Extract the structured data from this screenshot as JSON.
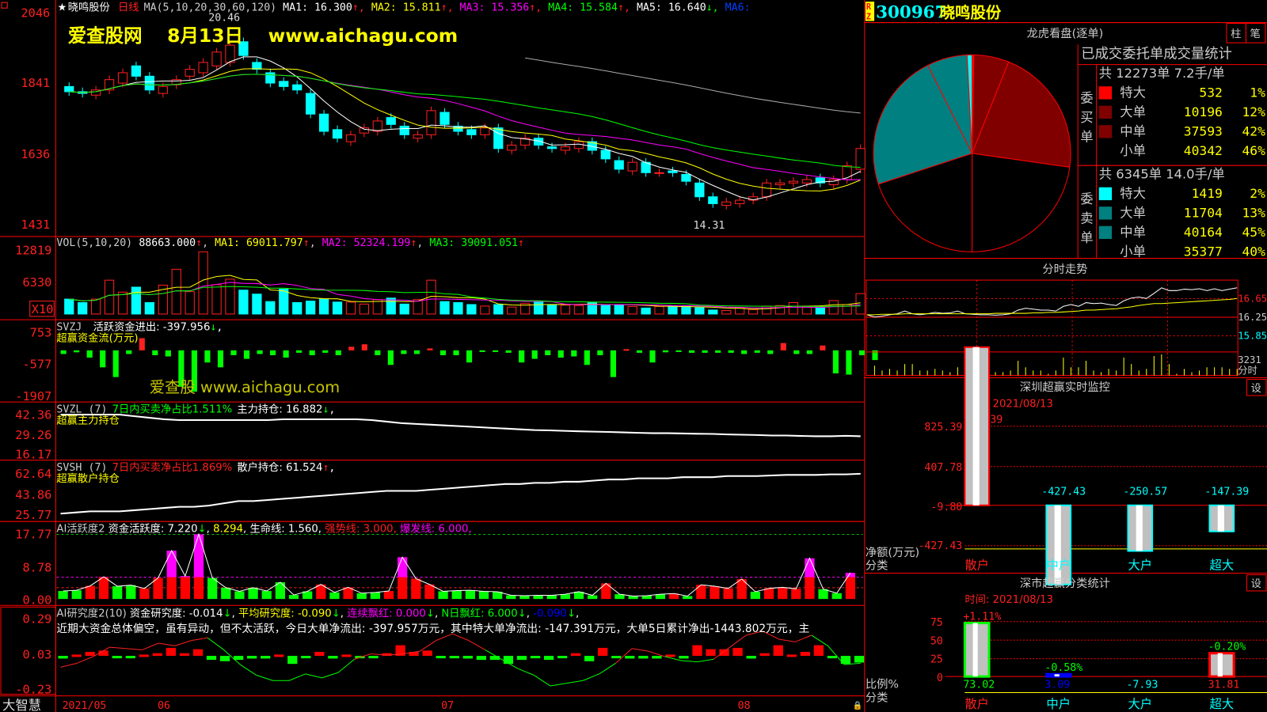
{
  "header": {
    "stock_name": "晓鸣股份",
    "period": "日线",
    "ma_label": "MA(5,10,20,30,60,120)",
    "ma": [
      {
        "label": "MA1: 16.300",
        "color": "#ffffff"
      },
      {
        "label": "MA2: 15.811",
        "color": "#ffff00"
      },
      {
        "label": "MA3: 15.356",
        "color": "#ff00ff"
      },
      {
        "label": "MA4: 15.584",
        "color": "#00ff00"
      },
      {
        "label": "MA5: 16.640",
        "color": "#ffffff"
      },
      {
        "label": "MA6:",
        "color": "#0040ff"
      }
    ],
    "watermark1": "爱查股网　 8月13日　 www.aichagu.com",
    "watermark2": "爱查股 www.aichagu.com",
    "high_mark": "20.46",
    "low_mark": "14.31"
  },
  "colors": {
    "up": "#ff2020",
    "down": "#00ffff",
    "grid": "#ff0000",
    "axis_text": "#ff2020"
  },
  "price_axis": [
    "2046",
    "1841",
    "1636",
    "1431"
  ],
  "price_axis_values": [
    20.46,
    18.41,
    16.36,
    14.31
  ],
  "candles": {
    "open": [
      18.3,
      18.15,
      18.05,
      18.2,
      18.4,
      18.9,
      18.6,
      18.1,
      18.35,
      18.6,
      18.7,
      18.9,
      19.0,
      19.6,
      19.0,
      18.7,
      18.45,
      18.35,
      18.1,
      17.5,
      17.05,
      16.7,
      16.95,
      17.0,
      17.4,
      17.15,
      16.8,
      16.9,
      17.55,
      17.15,
      17.05,
      16.9,
      17.1,
      16.45,
      16.6,
      16.8,
      16.55,
      16.45,
      16.5,
      16.7,
      16.45,
      16.15,
      15.85,
      16.1,
      15.8,
      15.85,
      15.75,
      15.5,
      15.1,
      14.85,
      14.9,
      15.0,
      15.1,
      15.45,
      15.5,
      15.5,
      15.65,
      15.45,
      15.6,
      15.9
    ],
    "close": [
      18.15,
      18.1,
      18.2,
      18.5,
      18.7,
      18.6,
      18.2,
      18.3,
      18.5,
      18.8,
      19.0,
      19.3,
      19.5,
      19.2,
      18.8,
      18.4,
      18.3,
      18.2,
      17.5,
      17.0,
      16.8,
      16.9,
      17.1,
      17.3,
      17.2,
      16.9,
      16.9,
      17.6,
      17.2,
      17.0,
      16.9,
      17.1,
      16.5,
      16.6,
      16.8,
      16.6,
      16.5,
      16.55,
      16.7,
      16.45,
      16.2,
      15.9,
      16.1,
      15.8,
      15.8,
      15.8,
      15.55,
      15.1,
      14.9,
      14.95,
      15.0,
      15.1,
      15.5,
      15.5,
      15.55,
      15.6,
      15.5,
      15.6,
      16.0,
      16.5
    ]
  },
  "volume": {
    "label": "VOL(5,10,20)",
    "value": "88663.000",
    "ma": [
      {
        "label": "MA1: 69011.797",
        "color": "#ffff00"
      },
      {
        "label": "MA2: 52324.199",
        "color": "#ff00ff"
      },
      {
        "label": "MA3: 39091.051",
        "color": "#00ff00"
      }
    ],
    "axis": [
      "12819",
      "6330"
    ],
    "axis_values": [
      12819,
      6330
    ],
    "unit_badge": "X10",
    "values": [
      3000,
      2300,
      3000,
      6800,
      4400,
      5400,
      2300,
      5800,
      9000,
      4500,
      12500,
      5900,
      7000,
      4800,
      4000,
      2500,
      5000,
      2300,
      2600,
      3000,
      2400,
      2400,
      2000,
      2900,
      3200,
      2000,
      2900,
      6800,
      2500,
      2300,
      1900,
      1600,
      1900,
      1400,
      2100,
      2400,
      1800,
      1800,
      1700,
      2300,
      1800,
      1900,
      1500,
      1200,
      1500,
      1600,
      1600,
      1300,
      800,
      700,
      1300,
      900,
      1600,
      1700,
      2300,
      1400,
      1200,
      2700,
      1900,
      4100
    ]
  },
  "svzj": {
    "label": "SVZJ",
    "title": "活跃资金进出: -397.956",
    "sub": "超赢资金流(万元)",
    "axis": [
      "753",
      "-577",
      "-1907"
    ],
    "axis_values": [
      753,
      -577,
      -1907
    ],
    "values": [
      -150,
      -80,
      -300,
      -700,
      -1100,
      -150,
      500,
      -200,
      -250,
      -1500,
      -1700,
      -500,
      -700,
      -200,
      -350,
      -150,
      -200,
      -300,
      -100,
      -200,
      -100,
      -200,
      150,
      250,
      -200,
      -600,
      -150,
      -150,
      80,
      -200,
      -200,
      -500,
      -50,
      -60,
      -100,
      -500,
      -350,
      -200,
      -300,
      -250,
      -600,
      -200,
      -1100,
      50,
      -100,
      -500,
      -80,
      -50,
      -100,
      -100,
      -100,
      -100,
      -150,
      -100,
      -150,
      300,
      -150,
      -150,
      200,
      -950,
      -1000,
      -200,
      -400
    ]
  },
  "svzl": {
    "label": "SVZL",
    "param": "(7)",
    "ratio": "7日内买卖净占比1.511%",
    "hold": "主力持仓: 16.882",
    "sub": "超赢主力持仓",
    "axis": [
      "42.36",
      "29.26",
      "16.17"
    ],
    "axis_values": [
      42.36,
      29.26,
      16.17
    ],
    "values": [
      42,
      42,
      42,
      42,
      42,
      41,
      40,
      39,
      38.5,
      38.5,
      38.5,
      38.5,
      38.5,
      38.5,
      38.5,
      39,
      39,
      39,
      39,
      39,
      39,
      38.5,
      37.5,
      36.5,
      36,
      35.5,
      35,
      34.5,
      34,
      33.5,
      33,
      32.5,
      32,
      31.8,
      31.5,
      31.2,
      31,
      30.8,
      30.5,
      30.2,
      30,
      30,
      29.8,
      29.6,
      29.5,
      29.2,
      29,
      28.8,
      28.5,
      28.5,
      28.2,
      28,
      28,
      28.3,
      28
    ]
  },
  "svsh": {
    "label": "SVSH",
    "param": "(7)",
    "ratio": "7日内买卖净占比1.869%",
    "hold": "散户持仓: 61.524",
    "sub": "超赢散户持仓",
    "axis": [
      "62.64",
      "43.86",
      "25.77"
    ],
    "axis_values": [
      62.64,
      43.86,
      25.77
    ],
    "values": [
      27,
      28,
      29,
      29,
      29,
      30,
      31,
      32,
      33,
      33,
      34,
      36,
      38,
      38,
      39,
      40,
      41,
      42,
      43,
      44,
      45,
      46,
      47,
      47,
      47,
      48,
      49,
      50,
      51,
      52,
      53,
      53,
      54,
      54,
      55,
      55,
      56,
      57,
      57,
      58,
      58,
      58,
      59,
      59,
      59,
      60,
      60,
      60,
      60.5,
      61,
      61,
      61,
      61.5,
      61.5,
      62
    ]
  },
  "ai_active": {
    "label": "AI活跃度2",
    "fund": "资金活跃度: 7.220",
    "v2": "8.294",
    "life": "生命线: 1.560",
    "strong": "强势线: 3.000",
    "burst": "爆发线: 6.000",
    "axis": [
      "17.77",
      "8.78",
      "0.00"
    ],
    "axis_values": [
      17.77,
      8.78,
      0
    ],
    "values": [
      2.2,
      2.4,
      3.6,
      6.1,
      3.5,
      3.8,
      2.9,
      5.8,
      13.3,
      6.3,
      17.8,
      5.8,
      3.1,
      2.1,
      3.1,
      2.2,
      4.6,
      1.1,
      2.1,
      4.0,
      1.8,
      3.2,
      1.6,
      1.8,
      2.2,
      11.5,
      5.6,
      4.0,
      2.1,
      2.3,
      2.4,
      2.1,
      2.0,
      1.0,
      0.9,
      1.0,
      1.0,
      1.3,
      2.0,
      1.0,
      4.3,
      1.3,
      0.8,
      0.9,
      1.3,
      1.5,
      0.8,
      3.9,
      3.5,
      2.9,
      5.5,
      2.0,
      2.9,
      3.2,
      2.8,
      11.2,
      2.7,
      1.6,
      7.2
    ],
    "up": [
      0,
      0,
      1,
      1,
      0,
      0,
      1,
      1,
      1,
      1,
      1,
      0,
      0,
      0,
      0,
      0,
      0,
      0,
      0,
      1,
      0,
      1,
      0,
      0,
      1,
      1,
      1,
      1,
      0,
      0,
      0,
      0,
      0,
      0,
      0,
      0,
      0,
      0,
      0,
      0,
      1,
      0,
      0,
      0,
      0,
      1,
      0,
      1,
      1,
      1,
      1,
      0,
      1,
      1,
      1,
      1,
      0,
      0,
      0
    ]
  },
  "ai_research": {
    "label": "AI研究度2(10)",
    "fund": "资金研究度: -0.014",
    "avg": "平均研究度: -0.090",
    "red": "连续飘红: 0.000",
    "nred": "N日飘红: 6.000",
    "v5": "-0.090",
    "comment": "近期大资金总体偏空，虽有异动，但不太活跃，今日大单净流出: -397.957万元，其中特大单净流出: -147.391万元，大单5日累计净出-1443.802万元，主",
    "axis": [
      "0.29",
      "0.03",
      "-0.23"
    ],
    "axis_values": [
      0.29,
      0.03,
      -0.23
    ],
    "bars": [
      -0.02,
      0.01,
      0.03,
      0.04,
      0,
      -0.01,
      0.01,
      0.02,
      0.06,
      0.02,
      0.05,
      -0.03,
      -0.04,
      -0.03,
      -0.02,
      -0.02,
      0.01,
      -0.06,
      -0.01,
      0.03,
      -0.02,
      0.01,
      0,
      -0.01,
      0.02,
      0.08,
      0.03,
      0.04,
      0,
      -0.01,
      -0.02,
      -0.03,
      -0.03,
      -0.06,
      -0.03,
      -0.01,
      -0.03,
      0,
      0.02,
      -0.04,
      0.06,
      -0.01,
      -0.02,
      -0.02,
      -0.02,
      0.01,
      -0.02,
      0.08,
      0.05,
      0.05,
      0.06,
      -0.02,
      0.02,
      0.08,
      0.01,
      0.03,
      0.08,
      -0.01,
      -0.06,
      -0.05
    ],
    "line": [
      -0.07,
      -0.04,
      0.01,
      0.08,
      0.07,
      0.06,
      0.11,
      0.09,
      0.13,
      0.15,
      0.06,
      -0.05,
      -0.13,
      -0.17,
      -0.17,
      -0.12,
      -0.15,
      -0.11,
      -0.01,
      0.03,
      0.02,
      0.03,
      0.05,
      0.13,
      0.18,
      0.13,
      0.06,
      -0.01,
      -0.08,
      -0.13,
      -0.21,
      -0.19,
      -0.17,
      -0.12,
      -0.04,
      0.07,
      0.05,
      0.01,
      -0.02,
      -0.03,
      -0.01,
      0.08,
      0.17,
      0.2,
      0.14,
      0.12,
      0.17,
      0.09,
      -0.05,
      -0.04
    ],
    "line_up": [
      1,
      1,
      1,
      1,
      1,
      1,
      1,
      1,
      1,
      1,
      0,
      0,
      0,
      0,
      0,
      0,
      0,
      0,
      0,
      1,
      1,
      1,
      1,
      1,
      1,
      1,
      1,
      0,
      0,
      0,
      0,
      0,
      0,
      0,
      0,
      1,
      1,
      1,
      0,
      0,
      0,
      1,
      1,
      1,
      1,
      1,
      1,
      0,
      0,
      0
    ]
  },
  "date_axis": {
    "app_name": "大智慧",
    "labels": [
      "2021/05",
      "06",
      "07",
      "08"
    ]
  },
  "right": {
    "badge": "RZ",
    "code": "300967",
    "name": "晓鸣股份",
    "pie_title": "龙虎看盘(逐单)",
    "tabs": [
      "柱",
      "笔"
    ],
    "stats_title": "已成交委托单成交量统计",
    "buy": {
      "side": "委买单",
      "summary": "共 12273单 7.2手/单",
      "rows": [
        {
          "label": "特大",
          "value": "532",
          "pct": "1%",
          "color": "#ff0000"
        },
        {
          "label": "大单",
          "value": "10196",
          "pct": "12%",
          "color": "#800000"
        },
        {
          "label": "中单",
          "value": "37593",
          "pct": "42%",
          "color": "#800000"
        },
        {
          "label": "小单",
          "value": "40342",
          "pct": "46%",
          "color": "#000000"
        }
      ]
    },
    "sell": {
      "side": "委卖单",
      "summary": "共 6345单 14.0手/单",
      "rows": [
        {
          "label": "特大",
          "value": "1419",
          "pct": "2%",
          "color": "#00ffff"
        },
        {
          "label": "大单",
          "value": "11704",
          "pct": "13%",
          "color": "#008080"
        },
        {
          "label": "中单",
          "value": "40164",
          "pct": "45%",
          "color": "#008080"
        },
        {
          "label": "小单",
          "value": "35377",
          "pct": "40%",
          "color": "#000000"
        }
      ]
    },
    "intraday": {
      "title": "分时走势",
      "axis": [
        "16.65",
        "16.25",
        "15.85"
      ],
      "vol_label": "3231",
      "vol_unit": "分时",
      "price": [
        16.2,
        16.15,
        16.17,
        16.2,
        16.22,
        16.28,
        16.22,
        16.2,
        16.22,
        16.25,
        16.23,
        16.24,
        16.28,
        16.22,
        16.21,
        16.2,
        16.2,
        16.19,
        16.2,
        16.22,
        16.3,
        16.34,
        16.32,
        16.3,
        16.3,
        16.28,
        16.38,
        16.42,
        16.38,
        16.46,
        16.44,
        16.45,
        16.42,
        16.4,
        16.5,
        16.56,
        16.58,
        16.55,
        16.66,
        16.78,
        16.72,
        16.72,
        16.75,
        16.74,
        16.76,
        16.72,
        16.76,
        16.72,
        16.75,
        16.78
      ],
      "avg": [
        16.2,
        16.2,
        16.21,
        16.21,
        16.21,
        16.22,
        16.22,
        16.22,
        16.22,
        16.22,
        16.22,
        16.22,
        16.22,
        16.22,
        16.22,
        16.22,
        16.22,
        16.23,
        16.23,
        16.23,
        16.23,
        16.23,
        16.24,
        16.24,
        16.25,
        16.25,
        16.26,
        16.27,
        16.28,
        16.3,
        16.3,
        16.31,
        16.32,
        16.33,
        16.35,
        16.37,
        16.4,
        16.42,
        16.44,
        16.44,
        16.45,
        16.46,
        16.47,
        16.48,
        16.49,
        16.5,
        16.51,
        16.52,
        16.53,
        16.55
      ]
    },
    "sz_monitor": {
      "title": "深圳超赢实时监控",
      "time": "时间: 2021/08/13",
      "top_label": "825.39",
      "axis": [
        "825.39",
        "407.78",
        "-9.80",
        "-427.43"
      ],
      "unit": "净额(万元)",
      "cat_label": "分类",
      "bars": [
        {
          "cat": "散户",
          "value": 825.39,
          "label": "",
          "cat_color": "#ff2020"
        },
        {
          "cat": "中户",
          "value": -427.43,
          "label": "-427.43",
          "cat_color": "#00ffff"
        },
        {
          "cat": "大户",
          "value": -250.57,
          "label": "-250.57",
          "cat_color": "#00ffff"
        },
        {
          "cat": "超大",
          "value": -147.39,
          "label": "-147.39",
          "cat_color": "#00ffff"
        }
      ]
    },
    "sz_stats": {
      "title": "深市超赢分类统计",
      "time": "时间: 2021/08/13",
      "axis": [
        "75",
        "50",
        "25",
        "0"
      ],
      "unit": "比例%",
      "cat_label": "分类",
      "bars": [
        {
          "cat": "散户",
          "value": 73.02,
          "value_label": "73.02",
          "change": "+1.11%",
          "change_color": "#ff2020",
          "value_color": "#00ff00",
          "edge": "#00ff00"
        },
        {
          "cat": "中户",
          "value": 3.09,
          "value_label": "3.09",
          "change": "-0.58%",
          "change_color": "#00ff00",
          "value_color": "#0000ff",
          "edge": "#0000ff"
        },
        {
          "cat": "大户",
          "value": -7.93,
          "value_label": "-7.93",
          "change": "",
          "change_color": "#00ff00",
          "value_color": "#00ffff",
          "edge": "#00ffff"
        },
        {
          "cat": "超大",
          "value": 31.81,
          "value_label": "31.81",
          "change": "-0.20%",
          "change_color": "#00ff00",
          "value_color": "#ff2020",
          "edge": "#ff0000"
        }
      ]
    }
  }
}
